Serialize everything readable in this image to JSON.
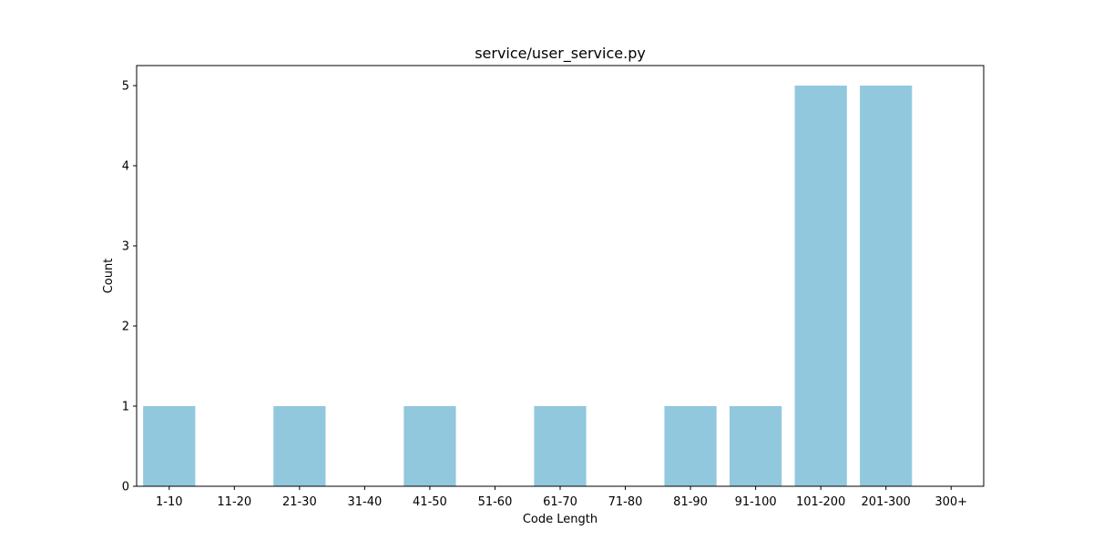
{
  "chart_data": {
    "type": "bar",
    "title": "service/user_service.py",
    "xlabel": "Code Length",
    "ylabel": "Count",
    "categories": [
      "1-10",
      "11-20",
      "21-30",
      "31-40",
      "41-50",
      "51-60",
      "61-70",
      "71-80",
      "81-90",
      "91-100",
      "101-200",
      "201-300",
      "300+"
    ],
    "values": [
      1,
      0,
      1,
      0,
      1,
      0,
      1,
      0,
      1,
      1,
      5,
      5,
      0
    ],
    "ylim": [
      0,
      5.25
    ],
    "yticks": [
      0,
      1,
      2,
      3,
      4,
      5
    ],
    "grid": false,
    "bar_color": "#92c8de",
    "axis_color": "#000000"
  }
}
